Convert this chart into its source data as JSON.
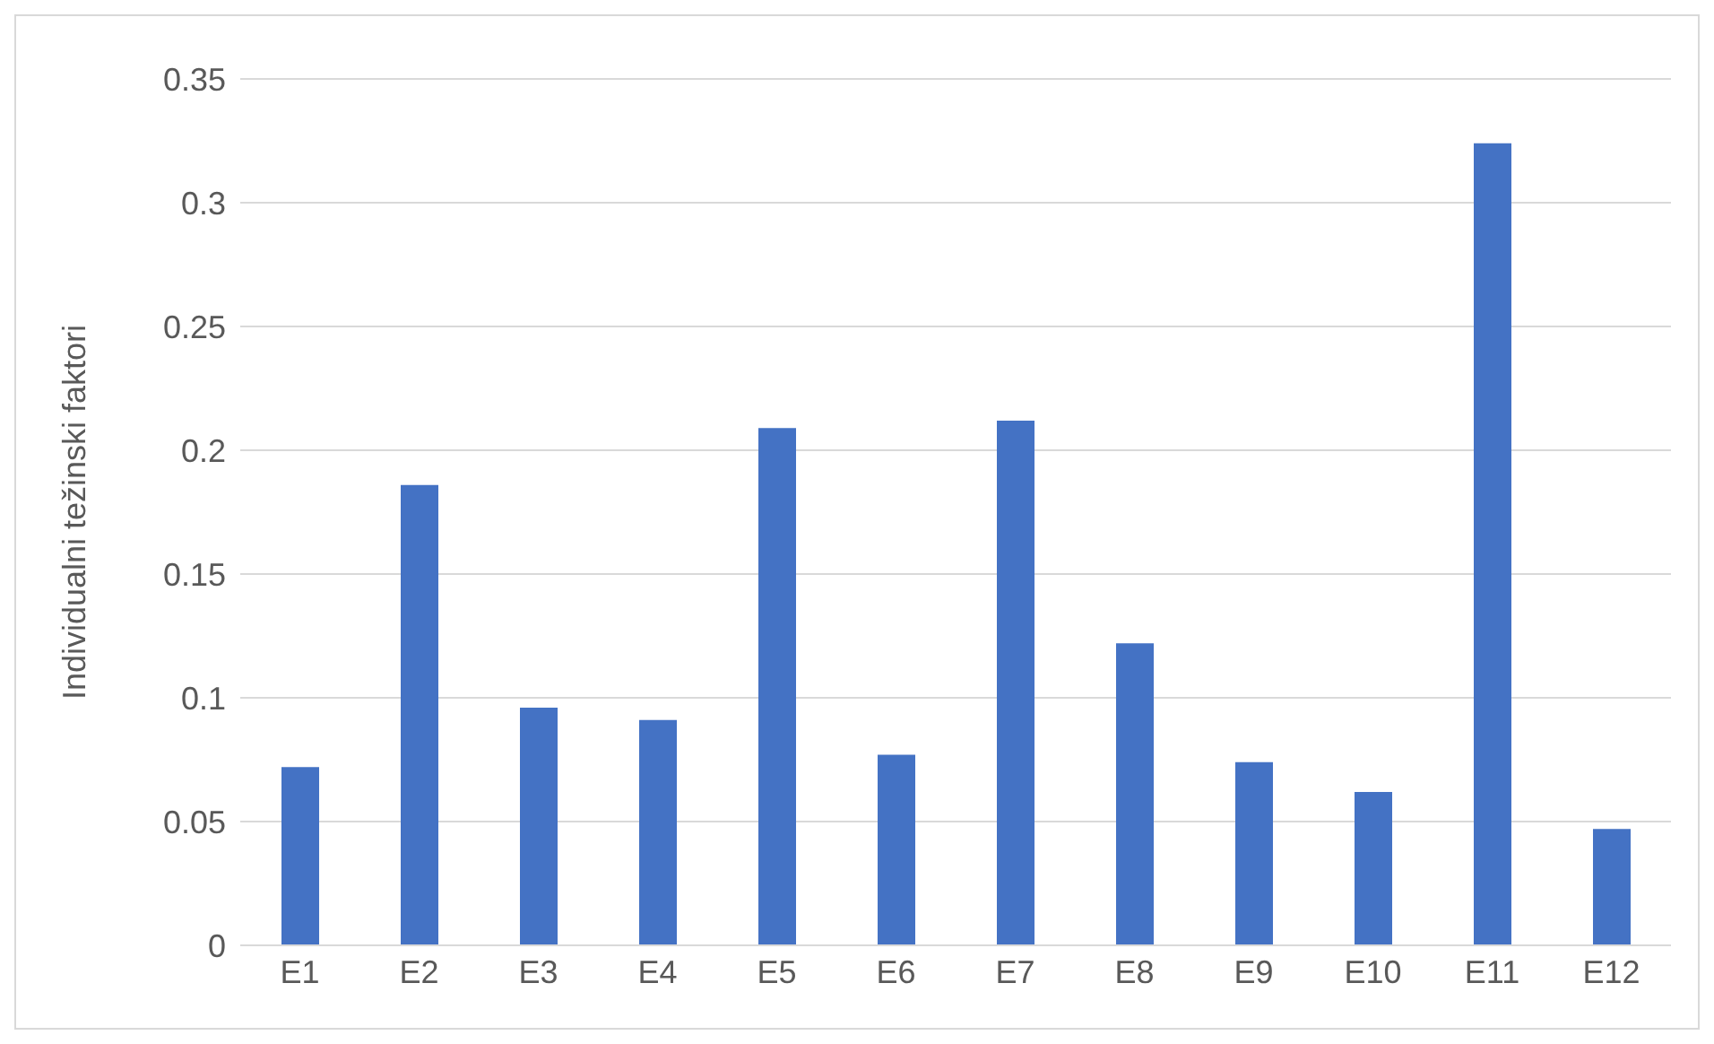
{
  "chart_data": {
    "type": "bar",
    "ylabel": "Individualni težinski faktori",
    "categories": [
      "E1",
      "E2",
      "E3",
      "E4",
      "E5",
      "E6",
      "E7",
      "E8",
      "E9",
      "E10",
      "E11",
      "E12"
    ],
    "values": [
      0.072,
      0.186,
      0.096,
      0.091,
      0.209,
      0.077,
      0.212,
      0.122,
      0.074,
      0.062,
      0.324,
      0.047
    ],
    "color": "#4472c4",
    "ylim": [
      0,
      0.35
    ],
    "yticks": [
      0,
      0.05,
      0.1,
      0.15,
      0.2,
      0.25,
      0.3,
      0.35
    ],
    "grid": "y"
  }
}
